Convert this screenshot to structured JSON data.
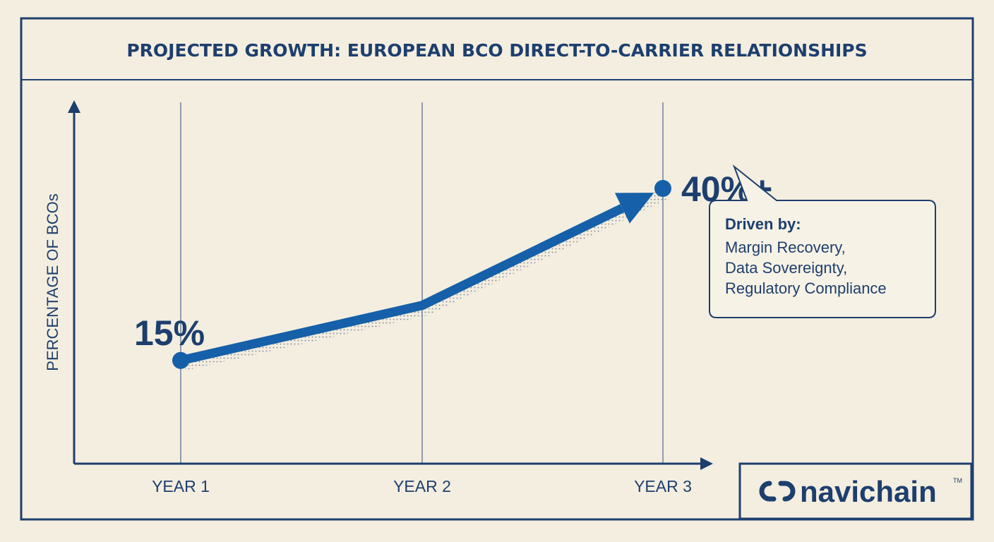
{
  "chart_data": {
    "type": "line",
    "title": "PROJECTED GROWTH: EUROPEAN BCO DIRECT-TO-CARRIER RELATIONSHIPS",
    "xlabel": "",
    "ylabel": "PERCENTAGE OF BCOs",
    "categories": [
      "YEAR 1",
      "YEAR 2",
      "YEAR 3"
    ],
    "values": [
      15,
      23,
      40
    ],
    "data_labels": [
      "15%",
      "",
      "40%+"
    ],
    "ylim": [
      0,
      52
    ],
    "grid": "vertical lines at categories",
    "line_color": "#1560a8",
    "annotation": {
      "heading": "Driven by:",
      "lines": [
        "Margin Recovery,",
        "Data Sovereignty,",
        "Regulatory Compliance"
      ]
    }
  },
  "brand": {
    "name": "navichain",
    "tm": "TM"
  },
  "colors": {
    "background": "#f4eee0",
    "ink": "#1d3f6e",
    "accent": "#1560a8"
  }
}
